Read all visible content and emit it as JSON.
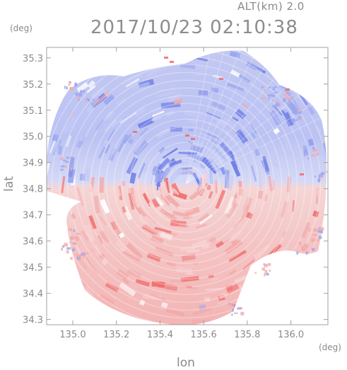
{
  "header": {
    "altitude_label": "ALT(km)  2.0",
    "timestamp": "2017/10/23 02:10:38"
  },
  "axes": {
    "y_label": "lat",
    "x_label": "lon",
    "y_unit": "(deg)",
    "x_unit": "(deg)",
    "y_ticks": [
      "35.3",
      "35.2",
      "35.1",
      "35.0",
      "34.9",
      "34.8",
      "34.7",
      "34.6",
      "34.5",
      "34.4",
      "34.3"
    ],
    "x_ticks": [
      "135.0",
      "135.2",
      "135.4",
      "135.6",
      "135.8",
      "136.0"
    ]
  },
  "map": {
    "lon_range": [
      134.88,
      136.17
    ],
    "lat_range": [
      34.28,
      35.34
    ],
    "radar_center": {
      "lon": 135.52,
      "lat": 34.82
    },
    "colors": {
      "north_dominant": "#9aa6ee",
      "north_light": "#c6ccf4",
      "south_dominant": "#f2aaaa",
      "south_light": "#f8d2d2",
      "strong_red": "#f06a6a",
      "strong_blue": "#6f7ee6",
      "frame": "#a0a0a0"
    }
  }
}
